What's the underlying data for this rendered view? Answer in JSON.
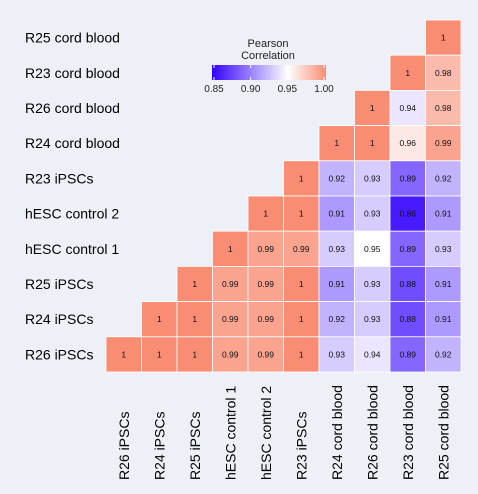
{
  "chart_data": {
    "type": "heatmap",
    "title": "",
    "xlabel": "",
    "ylabel": "",
    "rows": [
      "R25 cord blood",
      "R23 cord blood",
      "R26 cord blood",
      "R24 cord blood",
      "R23 iPSCs",
      "hESC control 2",
      "hESC control 1",
      "R25 iPSCs",
      "R24 iPSCs",
      "R26 iPSCs"
    ],
    "columns": [
      "R26 iPSCs",
      "R24 iPSCs",
      "R25 iPSCs",
      "hESC control 1",
      "hESC control 2",
      "R23 iPSCs",
      "R24 cord blood",
      "R26 cord blood",
      "R23 cord blood",
      "R25 cord blood"
    ],
    "values": [
      [
        null,
        null,
        null,
        null,
        null,
        null,
        null,
        null,
        null,
        1
      ],
      [
        null,
        null,
        null,
        null,
        null,
        null,
        null,
        null,
        1,
        0.98
      ],
      [
        null,
        null,
        null,
        null,
        null,
        null,
        null,
        1,
        0.94,
        0.98
      ],
      [
        null,
        null,
        null,
        null,
        null,
        null,
        1,
        1,
        0.96,
        0.99
      ],
      [
        null,
        null,
        null,
        null,
        null,
        1,
        0.92,
        0.93,
        0.89,
        0.92
      ],
      [
        null,
        null,
        null,
        null,
        1,
        1,
        0.91,
        0.93,
        0.86,
        0.91
      ],
      [
        null,
        null,
        null,
        1,
        0.99,
        0.99,
        0.93,
        0.95,
        0.89,
        0.93
      ],
      [
        null,
        null,
        1,
        0.99,
        0.99,
        1,
        0.91,
        0.93,
        0.88,
        0.91
      ],
      [
        null,
        1,
        1,
        0.99,
        0.99,
        1,
        0.92,
        0.93,
        0.88,
        0.91
      ],
      [
        1,
        1,
        1,
        0.99,
        0.99,
        1,
        0.93,
        0.94,
        0.89,
        0.92
      ]
    ],
    "legend": {
      "title_lines": [
        "Pearson",
        "Correlation"
      ],
      "ticks": [
        0.85,
        0.9,
        0.95,
        1.0
      ],
      "tick_labels": [
        "0.85",
        "0.90",
        "0.95",
        "1.00"
      ],
      "range": [
        0.85,
        1.0
      ],
      "placement": "top-center"
    },
    "colors": {
      "low": "#3300ff",
      "mid": "#ffffff",
      "high": "#f98d74",
      "midpoint": 0.95,
      "background": "#edf1f7"
    }
  }
}
